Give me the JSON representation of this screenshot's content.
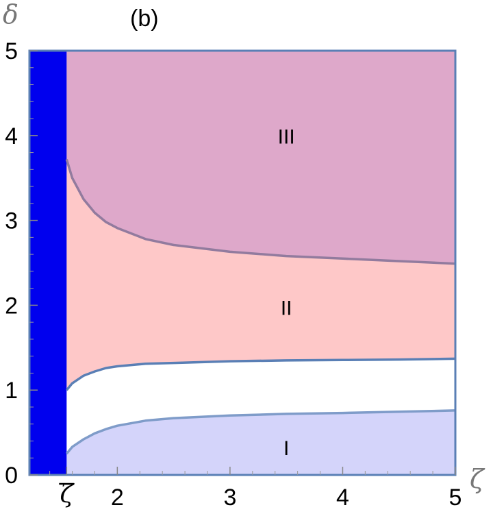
{
  "chart_data": {
    "type": "area",
    "panel_label": "(b)",
    "xlabel": "ζ",
    "ylabel": "δ",
    "xlim": [
      1.22,
      5
    ],
    "ylim": [
      0,
      5
    ],
    "x_ticks": [
      {
        "value": 1.55,
        "label": "ζ̄"
      },
      {
        "value": 2,
        "label": "2"
      },
      {
        "value": 3,
        "label": "3"
      },
      {
        "value": 4,
        "label": "4"
      },
      {
        "value": 5,
        "label": "5"
      }
    ],
    "y_ticks": [
      0,
      1,
      2,
      3,
      4,
      5
    ],
    "excluded_band": {
      "x_from": 1.22,
      "x_to": 1.55,
      "color": "#0000ee"
    },
    "boundaries": [
      {
        "id": "lower",
        "color": "#7f9cc9",
        "x": [
          1.55,
          1.6,
          1.7,
          1.8,
          1.9,
          2.0,
          2.25,
          2.5,
          3.0,
          3.5,
          4.0,
          4.5,
          5.0
        ],
        "y": [
          0.25,
          0.33,
          0.42,
          0.49,
          0.54,
          0.58,
          0.64,
          0.67,
          0.7,
          0.72,
          0.73,
          0.745,
          0.76
        ]
      },
      {
        "id": "middle",
        "color": "#5a7fb5",
        "x": [
          1.55,
          1.6,
          1.7,
          1.8,
          1.9,
          2.0,
          2.25,
          2.5,
          3.0,
          3.5,
          4.0,
          4.5,
          5.0
        ],
        "y": [
          1.0,
          1.08,
          1.17,
          1.22,
          1.26,
          1.28,
          1.31,
          1.32,
          1.34,
          1.35,
          1.355,
          1.36,
          1.37
        ]
      },
      {
        "id": "upper",
        "color": "#927b9e",
        "x": [
          1.55,
          1.6,
          1.7,
          1.8,
          1.9,
          2.0,
          2.25,
          2.5,
          3.0,
          3.5,
          4.0,
          4.5,
          5.0
        ],
        "y": [
          3.72,
          3.5,
          3.25,
          3.09,
          2.98,
          2.91,
          2.78,
          2.71,
          2.63,
          2.58,
          2.55,
          2.52,
          2.49
        ]
      }
    ],
    "regions": [
      {
        "label": "I",
        "label_x": 3.5,
        "label_y": 0.3,
        "fill": "#d4d4fa"
      },
      {
        "label": "II",
        "label_x": 3.5,
        "label_y": 1.95,
        "fill": "#fec8c8"
      },
      {
        "label": "III",
        "label_x": 3.5,
        "label_y": 3.97,
        "fill": "#dea8ca"
      }
    ],
    "grid": false,
    "frame_color": "#5a7fb5"
  }
}
